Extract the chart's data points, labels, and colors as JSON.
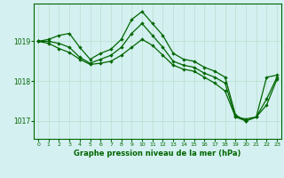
{
  "title": "Graphe pression niveau de la mer (hPa)",
  "bg_color": "#d4f0f0",
  "grid_color": "#b8e0d0",
  "line_color": "#006600",
  "x_ticks": [
    0,
    1,
    2,
    3,
    4,
    5,
    6,
    7,
    8,
    9,
    10,
    11,
    12,
    13,
    14,
    15,
    16,
    17,
    18,
    19,
    20,
    21,
    22,
    23
  ],
  "y_ticks": [
    1017,
    1018,
    1019
  ],
  "ylim": [
    1016.55,
    1019.95
  ],
  "xlim": [
    -0.4,
    23.4
  ],
  "series1": [
    1019.0,
    1019.05,
    1019.15,
    1019.2,
    1018.85,
    1018.55,
    1018.7,
    1018.8,
    1019.05,
    1019.55,
    1019.75,
    1019.45,
    1019.15,
    1018.7,
    1018.55,
    1018.5,
    1018.35,
    1018.25,
    1018.1,
    1017.15,
    1017.0,
    1017.1,
    1018.1,
    1018.15
  ],
  "series2": [
    1019.0,
    1019.0,
    1018.95,
    1018.85,
    1018.6,
    1018.45,
    1018.55,
    1018.65,
    1018.85,
    1019.2,
    1019.45,
    1019.15,
    1018.85,
    1018.5,
    1018.4,
    1018.35,
    1018.2,
    1018.1,
    1017.95,
    1017.1,
    1017.05,
    1017.1,
    1017.55,
    1018.1
  ],
  "series3": [
    1019.0,
    1018.95,
    1018.82,
    1018.72,
    1018.55,
    1018.42,
    1018.45,
    1018.5,
    1018.65,
    1018.85,
    1019.05,
    1018.9,
    1018.65,
    1018.4,
    1018.3,
    1018.25,
    1018.1,
    1017.95,
    1017.75,
    1017.1,
    1017.0,
    1017.1,
    1017.4,
    1018.05
  ]
}
